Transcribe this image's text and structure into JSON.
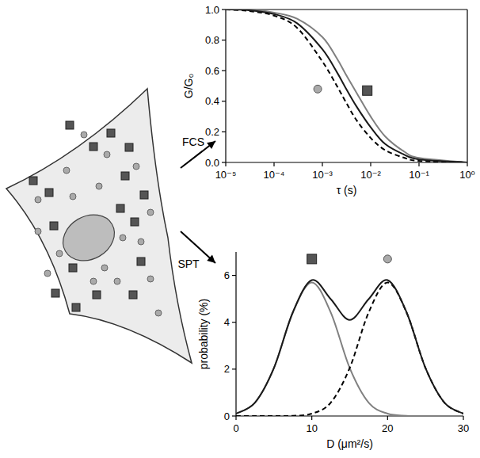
{
  "diagram": {
    "arrows": [
      {
        "label": "FCS"
      },
      {
        "label": "SPT"
      }
    ]
  },
  "chart_data": [
    {
      "type": "line",
      "x_label": "τ (s)",
      "y_label": "G/G₀",
      "log": "x",
      "xlim": [
        1e-05,
        1
      ],
      "ylim": [
        0,
        1
      ],
      "xticks": [
        {
          "value": 1e-05,
          "label": "10⁻⁵"
        },
        {
          "value": 0.0001,
          "label": "10⁻⁴"
        },
        {
          "value": 0.001,
          "label": "10⁻³"
        },
        {
          "value": 0.01,
          "label": "10⁻²"
        },
        {
          "value": 0.1,
          "label": "10⁻¹"
        },
        {
          "value": 1,
          "label": "10⁰"
        }
      ],
      "yticks": [
        {
          "value": 0,
          "label": "0.0"
        },
        0.2,
        0.4,
        0.6,
        0.8,
        {
          "value": 1,
          "label": "1.0"
        }
      ],
      "x": [
        1e-05,
        3e-05,
        0.0001,
        0.0003,
        0.001,
        0.002,
        0.003,
        0.005,
        0.01,
        0.02,
        0.05,
        0.1,
        1
      ],
      "series": [
        {
          "color": "#808080",
          "line_style": "solid",
          "values": [
            1.0,
            1.0,
            0.98,
            0.94,
            0.82,
            0.68,
            0.58,
            0.46,
            0.3,
            0.17,
            0.07,
            0.03,
            0
          ]
        },
        {
          "color": "#000000",
          "line_style": "dashed",
          "values": [
            1.0,
            0.99,
            0.96,
            0.88,
            0.66,
            0.5,
            0.4,
            0.28,
            0.16,
            0.08,
            0.03,
            0.01,
            0
          ]
        },
        {
          "color": "#1a1a1a",
          "line_style": "solid",
          "values": [
            1.0,
            0.995,
            0.97,
            0.91,
            0.74,
            0.59,
            0.49,
            0.37,
            0.23,
            0.12,
            0.05,
            0.02,
            0
          ]
        }
      ],
      "annotations": [
        {
          "x": 0.0008,
          "y": 0.48,
          "marker": "circle",
          "color": "#aaaaaa"
        },
        {
          "x": 0.0085,
          "y": 0.47,
          "marker": "square",
          "color": "#555555"
        }
      ]
    },
    {
      "type": "line",
      "x_label": "D (μm²/s)",
      "y_label": "probability (%)",
      "xlim": [
        0,
        30
      ],
      "ylim": [
        0,
        7
      ],
      "xticks": [
        0,
        10,
        20,
        30
      ],
      "yticks": [
        0,
        2,
        4,
        6
      ],
      "x": [
        0,
        2.5,
        5,
        7.5,
        10,
        12.5,
        15,
        17.5,
        20,
        22.5,
        25,
        27.5,
        30
      ],
      "series": [
        {
          "color": "#808080",
          "line_style": "solid",
          "values": [
            0.1,
            0.57,
            2.05,
            4.42,
            5.7,
            4.42,
            2.05,
            0.57,
            0.1,
            0.01,
            0,
            0,
            0
          ]
        },
        {
          "color": "#000000",
          "line_style": "dashed",
          "values": [
            0,
            0,
            0,
            0.01,
            0.1,
            0.57,
            2.05,
            4.42,
            5.7,
            4.42,
            2.05,
            0.57,
            0.1
          ]
        },
        {
          "color": "#1a1a1a",
          "line_style": "solid",
          "values": [
            0.1,
            0.57,
            2.05,
            4.43,
            5.8,
            4.99,
            4.1,
            4.99,
            5.8,
            4.43,
            2.05,
            0.57,
            0.1
          ]
        }
      ],
      "annotations": [
        {
          "x": 10,
          "y": 6.7,
          "marker": "square",
          "color": "#555555"
        },
        {
          "x": 20,
          "y": 6.7,
          "marker": "circle",
          "color": "#aaaaaa"
        }
      ]
    }
  ]
}
